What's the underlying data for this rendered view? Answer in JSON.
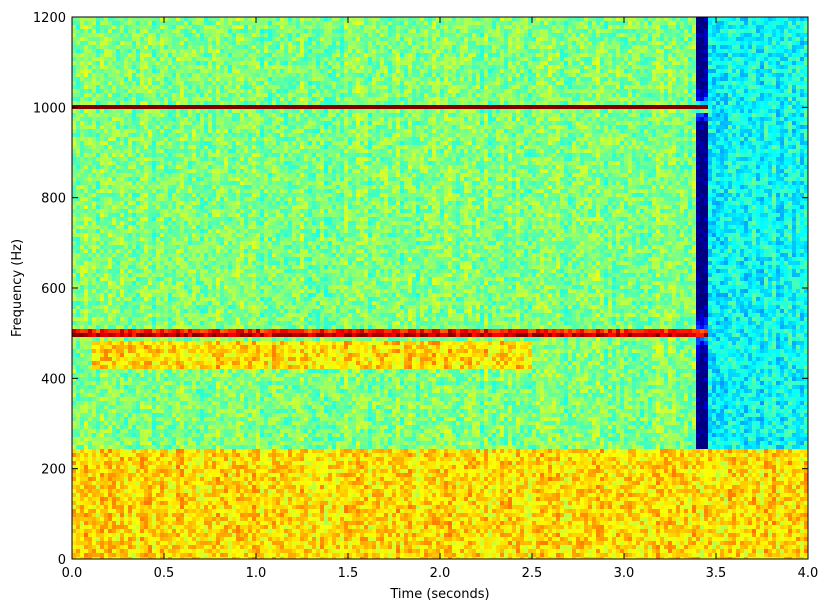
{
  "chart_data": {
    "type": "heatmap",
    "title": "",
    "xlabel": "Time (seconds)",
    "ylabel": "Frequency (Hz)",
    "xlim": [
      0.0,
      4.0
    ],
    "ylim": [
      0,
      1200
    ],
    "xticks": [
      "0.0",
      "0.5",
      "1.0",
      "1.5",
      "2.0",
      "2.5",
      "3.0",
      "3.5",
      "4.0"
    ],
    "yticks": [
      "0",
      "200",
      "400",
      "600",
      "800",
      "1000",
      "1200"
    ],
    "xtick_values": [
      0.0,
      0.5,
      1.0,
      1.5,
      2.0,
      2.5,
      3.0,
      3.5,
      4.0
    ],
    "ytick_values": [
      0,
      200,
      400,
      600,
      800,
      1000,
      1200
    ],
    "colormap": "jet",
    "grid": false,
    "features": [
      {
        "kind": "tone",
        "frequency_hz": 500,
        "t_start": 0.0,
        "t_end": 3.45,
        "intensity": "very high"
      },
      {
        "kind": "tone",
        "frequency_hz": 1000,
        "t_start": 0.0,
        "t_end": 3.45,
        "intensity": "high"
      },
      {
        "kind": "sidebands",
        "frequency_range_hz": [
          420,
          480
        ],
        "t_start": 0.1,
        "t_end": 2.5,
        "intensity": "medium"
      },
      {
        "kind": "broadband",
        "frequency_range_hz": [
          0,
          240
        ],
        "t_start": 0.0,
        "t_end": 4.0,
        "intensity": "medium"
      },
      {
        "kind": "background",
        "frequency_range_hz": [
          0,
          1200
        ],
        "t_start": 0.0,
        "t_end": 3.4,
        "intensity": "low-medium"
      },
      {
        "kind": "background",
        "frequency_range_hz": [
          240,
          1200
        ],
        "t_start": 3.45,
        "t_end": 4.0,
        "intensity": "low"
      }
    ]
  }
}
